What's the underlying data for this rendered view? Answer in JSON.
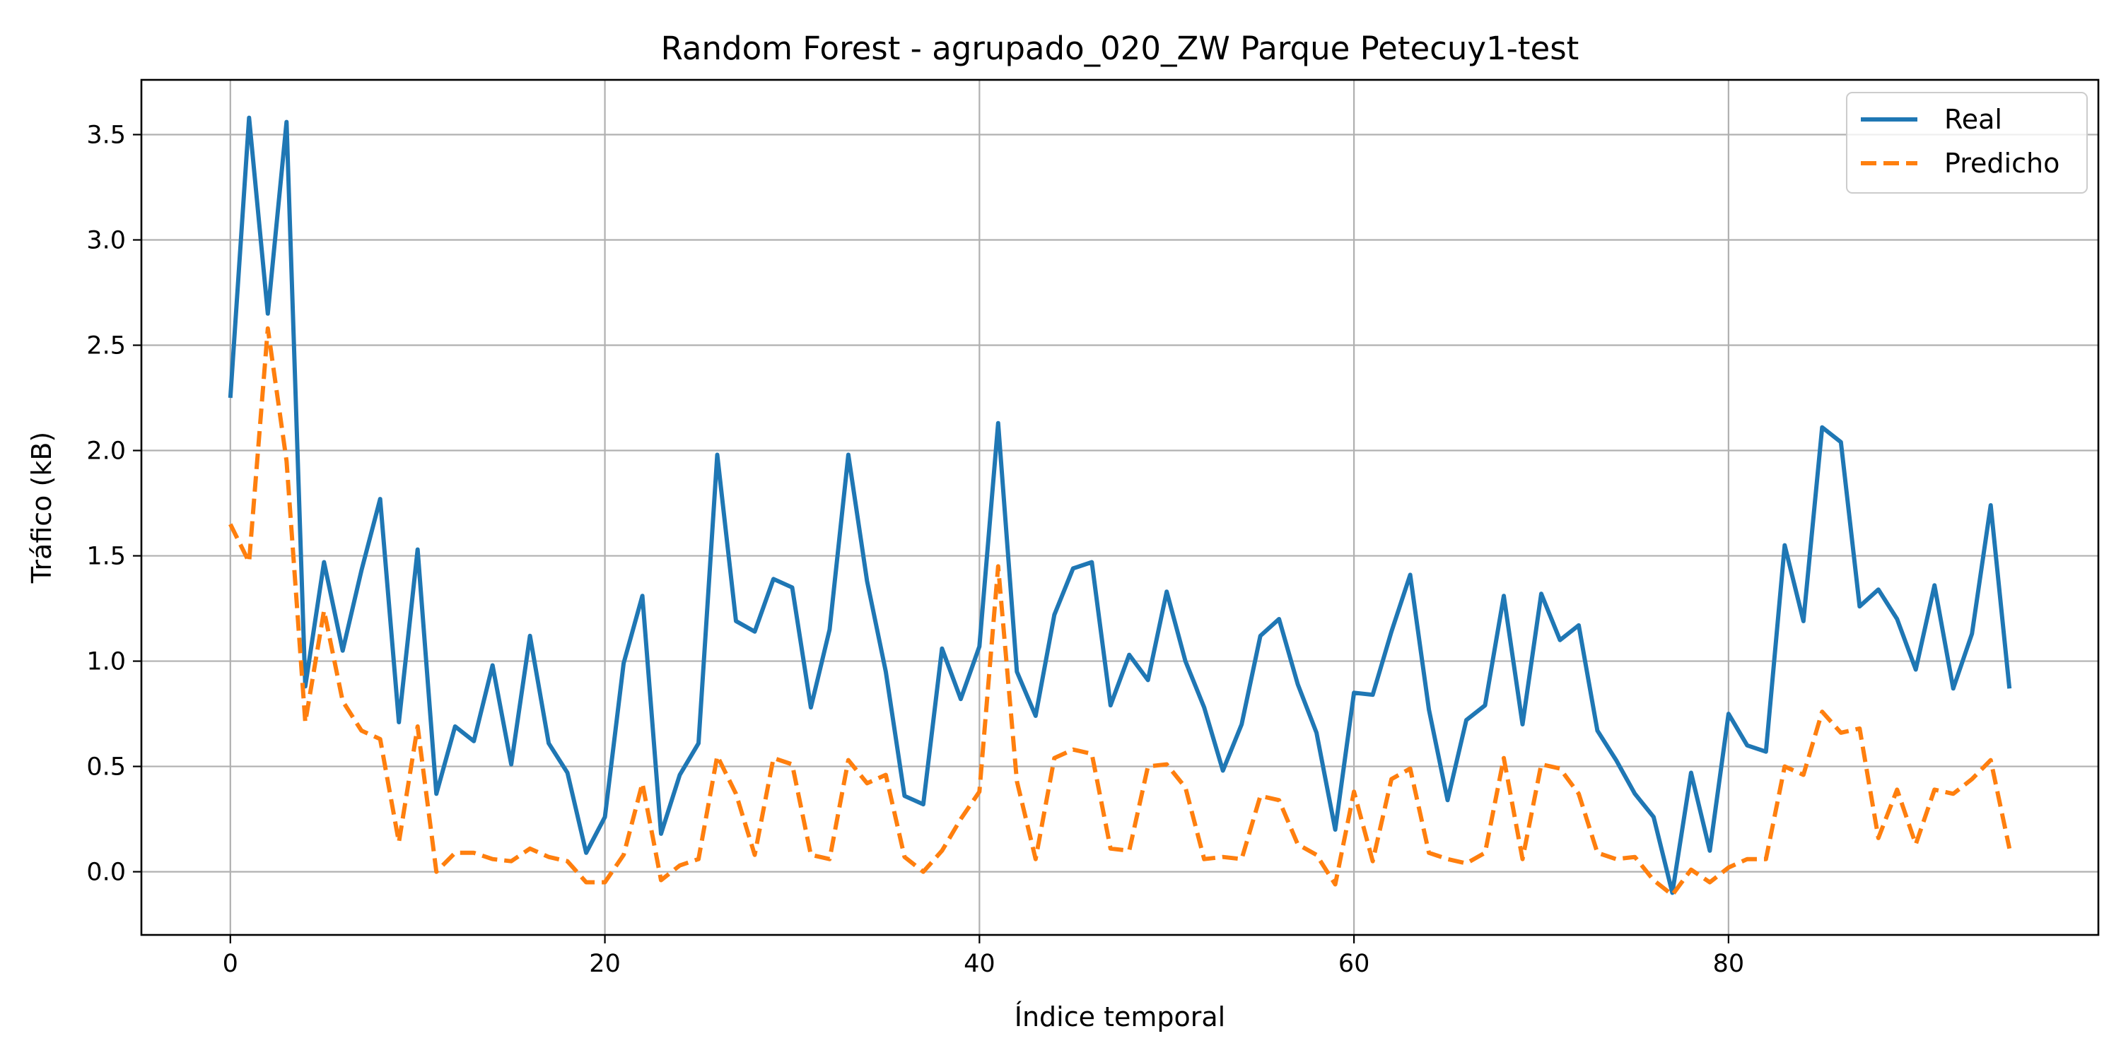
{
  "chart_data": {
    "type": "line",
    "title": "Random Forest - agrupado_020_ZW Parque Petecuy1-test",
    "xlabel": "Índice temporal",
    "ylabel": "Tráfico (kB)",
    "xlim": [
      -4.75,
      99.75
    ],
    "ylim": [
      -0.3,
      3.76
    ],
    "xticks": [
      0,
      20,
      40,
      60,
      80
    ],
    "xtick_labels": [
      "0",
      "20",
      "40",
      "60",
      "80"
    ],
    "yticks": [
      0.0,
      0.5,
      1.0,
      1.5,
      2.0,
      2.5,
      3.0,
      3.5
    ],
    "ytick_labels": [
      "0.0",
      "0.5",
      "1.0",
      "1.5",
      "2.0",
      "2.5",
      "3.0",
      "3.5"
    ],
    "grid": true,
    "legend_position": "top-right",
    "x": [
      0,
      1,
      2,
      3,
      4,
      5,
      6,
      7,
      8,
      9,
      10,
      11,
      12,
      13,
      14,
      15,
      16,
      17,
      18,
      19,
      20,
      21,
      22,
      23,
      24,
      25,
      26,
      27,
      28,
      29,
      30,
      31,
      32,
      33,
      34,
      35,
      36,
      37,
      38,
      39,
      40,
      41,
      42,
      43,
      44,
      45,
      46,
      47,
      48,
      49,
      50,
      51,
      52,
      53,
      54,
      55,
      56,
      57,
      58,
      59,
      60,
      61,
      62,
      63,
      64,
      65,
      66,
      67,
      68,
      69,
      70,
      71,
      72,
      73,
      74,
      75,
      76,
      77,
      78,
      79,
      80,
      81,
      82,
      83,
      84,
      85,
      86,
      87,
      88,
      89,
      90,
      91,
      92,
      93,
      94,
      95
    ],
    "series": [
      {
        "name": "Real",
        "color": "#1f77b4",
        "style": "solid",
        "values": [
          2.25,
          3.58,
          2.65,
          3.56,
          0.88,
          1.47,
          1.05,
          1.43,
          1.77,
          0.71,
          1.53,
          0.37,
          0.69,
          0.62,
          0.98,
          0.51,
          1.12,
          0.61,
          0.47,
          0.09,
          0.26,
          0.99,
          1.31,
          0.18,
          0.46,
          0.61,
          1.98,
          1.19,
          1.14,
          1.39,
          1.35,
          0.78,
          1.15,
          1.98,
          1.38,
          0.95,
          0.36,
          0.32,
          1.06,
          0.82,
          1.07,
          2.13,
          0.95,
          0.74,
          1.22,
          1.44,
          1.47,
          0.79,
          1.03,
          0.91,
          1.33,
          1.0,
          0.78,
          0.48,
          0.7,
          1.12,
          1.2,
          0.89,
          0.66,
          0.2,
          0.85,
          0.84,
          1.14,
          1.41,
          0.77,
          0.34,
          0.72,
          0.79,
          1.31,
          0.7,
          1.32,
          1.1,
          1.17,
          0.67,
          0.53,
          0.37,
          0.26,
          -0.1,
          0.47,
          0.1,
          0.75,
          0.6,
          0.57,
          1.55,
          1.19,
          2.11,
          2.04,
          1.26,
          1.34,
          1.2,
          0.96,
          1.36,
          0.87,
          1.13,
          1.74,
          0.87
        ]
      },
      {
        "name": "Predicho",
        "color": "#ff7f0e",
        "style": "dashed",
        "values": [
          1.65,
          1.47,
          2.58,
          1.95,
          0.71,
          1.24,
          0.81,
          0.67,
          0.63,
          0.14,
          0.69,
          0.0,
          0.09,
          0.09,
          0.06,
          0.05,
          0.11,
          0.07,
          0.05,
          -0.05,
          -0.05,
          0.08,
          0.42,
          -0.04,
          0.03,
          0.06,
          0.55,
          0.37,
          0.08,
          0.54,
          0.51,
          0.08,
          0.06,
          0.53,
          0.42,
          0.46,
          0.07,
          0.0,
          0.1,
          0.25,
          0.38,
          1.45,
          0.43,
          0.06,
          0.54,
          0.58,
          0.56,
          0.11,
          0.1,
          0.5,
          0.51,
          0.4,
          0.06,
          0.07,
          0.06,
          0.36,
          0.34,
          0.13,
          0.08,
          -0.06,
          0.38,
          0.05,
          0.44,
          0.49,
          0.09,
          0.06,
          0.04,
          0.09,
          0.54,
          0.06,
          0.51,
          0.49,
          0.37,
          0.09,
          0.06,
          0.07,
          -0.04,
          -0.11,
          0.01,
          -0.05,
          0.02,
          0.06,
          0.06,
          0.5,
          0.46,
          0.76,
          0.66,
          0.68,
          0.16,
          0.39,
          0.13,
          0.39,
          0.37,
          0.44,
          0.53,
          0.11
        ]
      }
    ]
  }
}
